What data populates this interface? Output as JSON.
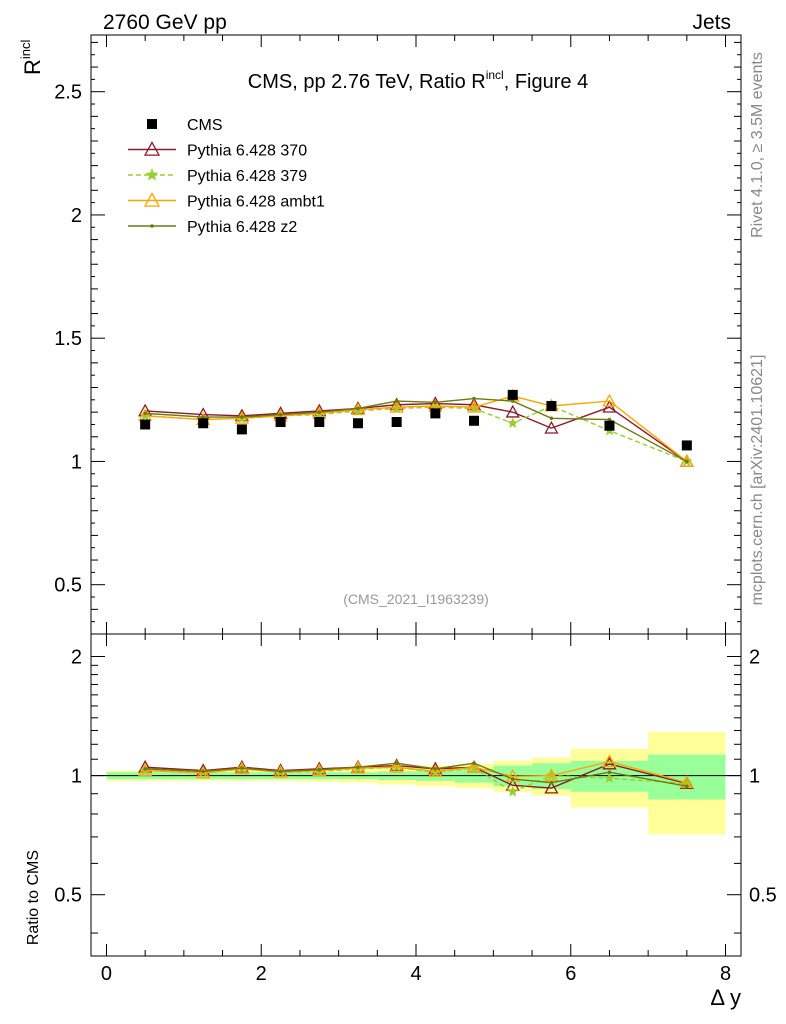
{
  "header": {
    "energy_label": "2760 GeV pp",
    "process_label": "Jets",
    "side_label_rivet": "Rivet 4.1.0, ≥ 3.5M events",
    "side_label_mcplots": "mcplots.cern.ch [arXiv:2401.10621]"
  },
  "chart_data": {
    "type": "line",
    "title_main": "CMS, pp 2.76 TeV, Ratio R",
    "title_sup": "incl",
    "title_tail": ", Figure 4",
    "analysis_tag": "(CMS_2021_I1963239)",
    "ylabel_main": "R",
    "ylabel_sup": "incl",
    "ylabel_ratio": "Ratio to CMS",
    "xlabel": "Δ y",
    "xlim": [
      -0.2,
      8.2
    ],
    "ylim_main": [
      0.3,
      2.73
    ],
    "ylim_ratio": [
      0.35,
      2.28
    ],
    "x_ticks": [
      "0",
      "2",
      "4",
      "6",
      "8"
    ],
    "x_tick_values": [
      0,
      2,
      4,
      6,
      8
    ],
    "y_ticks_main": [
      "0.5",
      "1",
      "1.5",
      "2",
      "2.5"
    ],
    "y_tick_values_main": [
      0.5,
      1,
      1.5,
      2,
      2.5
    ],
    "y_ticks_ratio": [
      "0.5",
      "1",
      "2"
    ],
    "y_tick_values_ratio": [
      0.5,
      1,
      2
    ],
    "bins": [
      [
        0,
        1
      ],
      [
        1,
        1.5
      ],
      [
        1.5,
        2
      ],
      [
        2,
        2.5
      ],
      [
        2.5,
        3
      ],
      [
        3,
        3.5
      ],
      [
        3.5,
        4
      ],
      [
        4,
        4.5
      ],
      [
        4.5,
        5
      ],
      [
        5,
        5.5
      ],
      [
        5.5,
        6
      ],
      [
        6,
        7
      ],
      [
        7,
        8
      ]
    ],
    "x": [
      0.5,
      1.25,
      1.75,
      2.25,
      2.75,
      3.25,
      3.75,
      4.25,
      4.75,
      5.25,
      5.75,
      6.5,
      7.5
    ],
    "data": {
      "name": "CMS",
      "values": [
        1.15,
        1.155,
        1.13,
        1.16,
        1.16,
        1.155,
        1.16,
        1.195,
        1.165,
        1.27,
        1.225,
        1.145,
        1.065
      ],
      "band_green": [
        0.02,
        0.02,
        0.02,
        0.02,
        0.02,
        0.02,
        0.025,
        0.03,
        0.04,
        0.06,
        0.075,
        0.09,
        0.13
      ],
      "band_yellow": [
        0.03,
        0.03,
        0.03,
        0.03,
        0.035,
        0.04,
        0.05,
        0.06,
        0.07,
        0.09,
        0.11,
        0.17,
        0.29
      ]
    },
    "series": [
      {
        "name": "Pythia 6.428 370",
        "color": "#8b1a2b",
        "dashed": false,
        "marker": "triangle",
        "values": [
          1.205,
          1.19,
          1.185,
          1.195,
          1.205,
          1.215,
          1.23,
          1.235,
          1.23,
          1.2,
          1.135,
          1.22,
          1.0
        ],
        "ratio": [
          1.05,
          1.03,
          1.05,
          1.03,
          1.04,
          1.05,
          1.06,
          1.04,
          1.05,
          0.945,
          0.93,
          1.07,
          0.955
        ]
      },
      {
        "name": "Pythia 6.428 379",
        "color": "#9acd32",
        "dashed": true,
        "marker": "star",
        "values": [
          1.185,
          1.17,
          1.175,
          1.185,
          1.19,
          1.205,
          1.215,
          1.22,
          1.215,
          1.155,
          1.225,
          1.125,
          1.0
        ],
        "ratio": [
          1.03,
          1.02,
          1.04,
          1.02,
          1.025,
          1.04,
          1.05,
          1.02,
          1.045,
          0.91,
          1.0,
          0.985,
          0.955
        ]
      },
      {
        "name": "Pythia 6.428 ambt1",
        "color": "#ffa500",
        "dashed": false,
        "marker": "triangle",
        "values": [
          1.185,
          1.17,
          1.175,
          1.185,
          1.195,
          1.21,
          1.22,
          1.225,
          1.22,
          1.265,
          1.225,
          1.245,
          1.0
        ],
        "ratio": [
          1.03,
          1.015,
          1.04,
          1.02,
          1.03,
          1.045,
          1.05,
          1.025,
          1.05,
          0.995,
          1.0,
          1.085,
          0.96
        ]
      },
      {
        "name": "Pythia 6.428 z2",
        "color": "#6b7a12",
        "dashed": false,
        "marker": "dot",
        "values": [
          1.195,
          1.18,
          1.18,
          1.19,
          1.2,
          1.215,
          1.245,
          1.24,
          1.255,
          1.245,
          1.175,
          1.17,
          1.0
        ],
        "ratio": [
          1.04,
          1.025,
          1.045,
          1.025,
          1.035,
          1.05,
          1.075,
          1.04,
          1.075,
          0.98,
          0.96,
          1.02,
          0.94
        ]
      }
    ]
  }
}
